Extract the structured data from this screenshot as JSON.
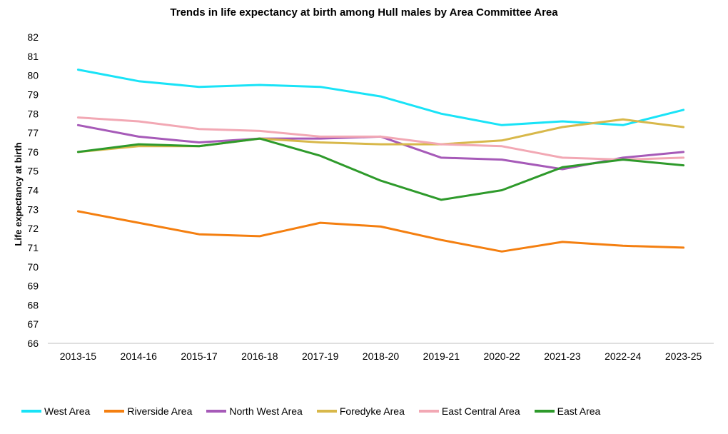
{
  "chart_data": {
    "type": "line",
    "title": "Trends in life expectancy at birth among Hull males by Area Committee Area",
    "xlabel": "",
    "ylabel": "Life expectancy at birth",
    "ylim": [
      66,
      82
    ],
    "yticks": [
      66,
      67,
      68,
      69,
      70,
      71,
      72,
      73,
      74,
      75,
      76,
      77,
      78,
      79,
      80,
      81,
      82
    ],
    "categories": [
      "2013-15",
      "2014-16",
      "2015-17",
      "2016-18",
      "2017-19",
      "2018-20",
      "2019-21",
      "2020-22",
      "2021-23",
      "2022-24",
      "2023-25"
    ],
    "grid": false,
    "legend_position": "bottom",
    "series": [
      {
        "name": "West Area",
        "color": "#19e3f7",
        "values": [
          80.3,
          79.7,
          79.4,
          79.5,
          79.4,
          78.9,
          78.0,
          77.4,
          77.6,
          77.4,
          78.2
        ]
      },
      {
        "name": "Riverside Area",
        "color": "#f47f10",
        "values": [
          72.9,
          72.3,
          71.7,
          71.6,
          72.3,
          72.1,
          71.4,
          70.8,
          71.3,
          71.1,
          71.0
        ]
      },
      {
        "name": "North West Area",
        "color": "#a65ab8",
        "values": [
          77.4,
          76.8,
          76.5,
          76.7,
          76.7,
          76.8,
          75.7,
          75.6,
          75.1,
          75.7,
          76.0
        ]
      },
      {
        "name": "Foredyke Area",
        "color": "#d8b84a",
        "values": [
          76.0,
          76.3,
          76.3,
          76.7,
          76.5,
          76.4,
          76.4,
          76.6,
          77.3,
          77.7,
          77.3
        ]
      },
      {
        "name": "East Central Area",
        "color": "#f2a8b4",
        "values": [
          77.8,
          77.6,
          77.2,
          77.1,
          76.8,
          76.8,
          76.4,
          76.3,
          75.7,
          75.6,
          75.7
        ]
      },
      {
        "name": "East Area",
        "color": "#2e9a2b",
        "values": [
          76.0,
          76.4,
          76.3,
          76.7,
          75.8,
          74.5,
          73.5,
          74.0,
          75.2,
          75.6,
          75.3
        ]
      }
    ]
  }
}
